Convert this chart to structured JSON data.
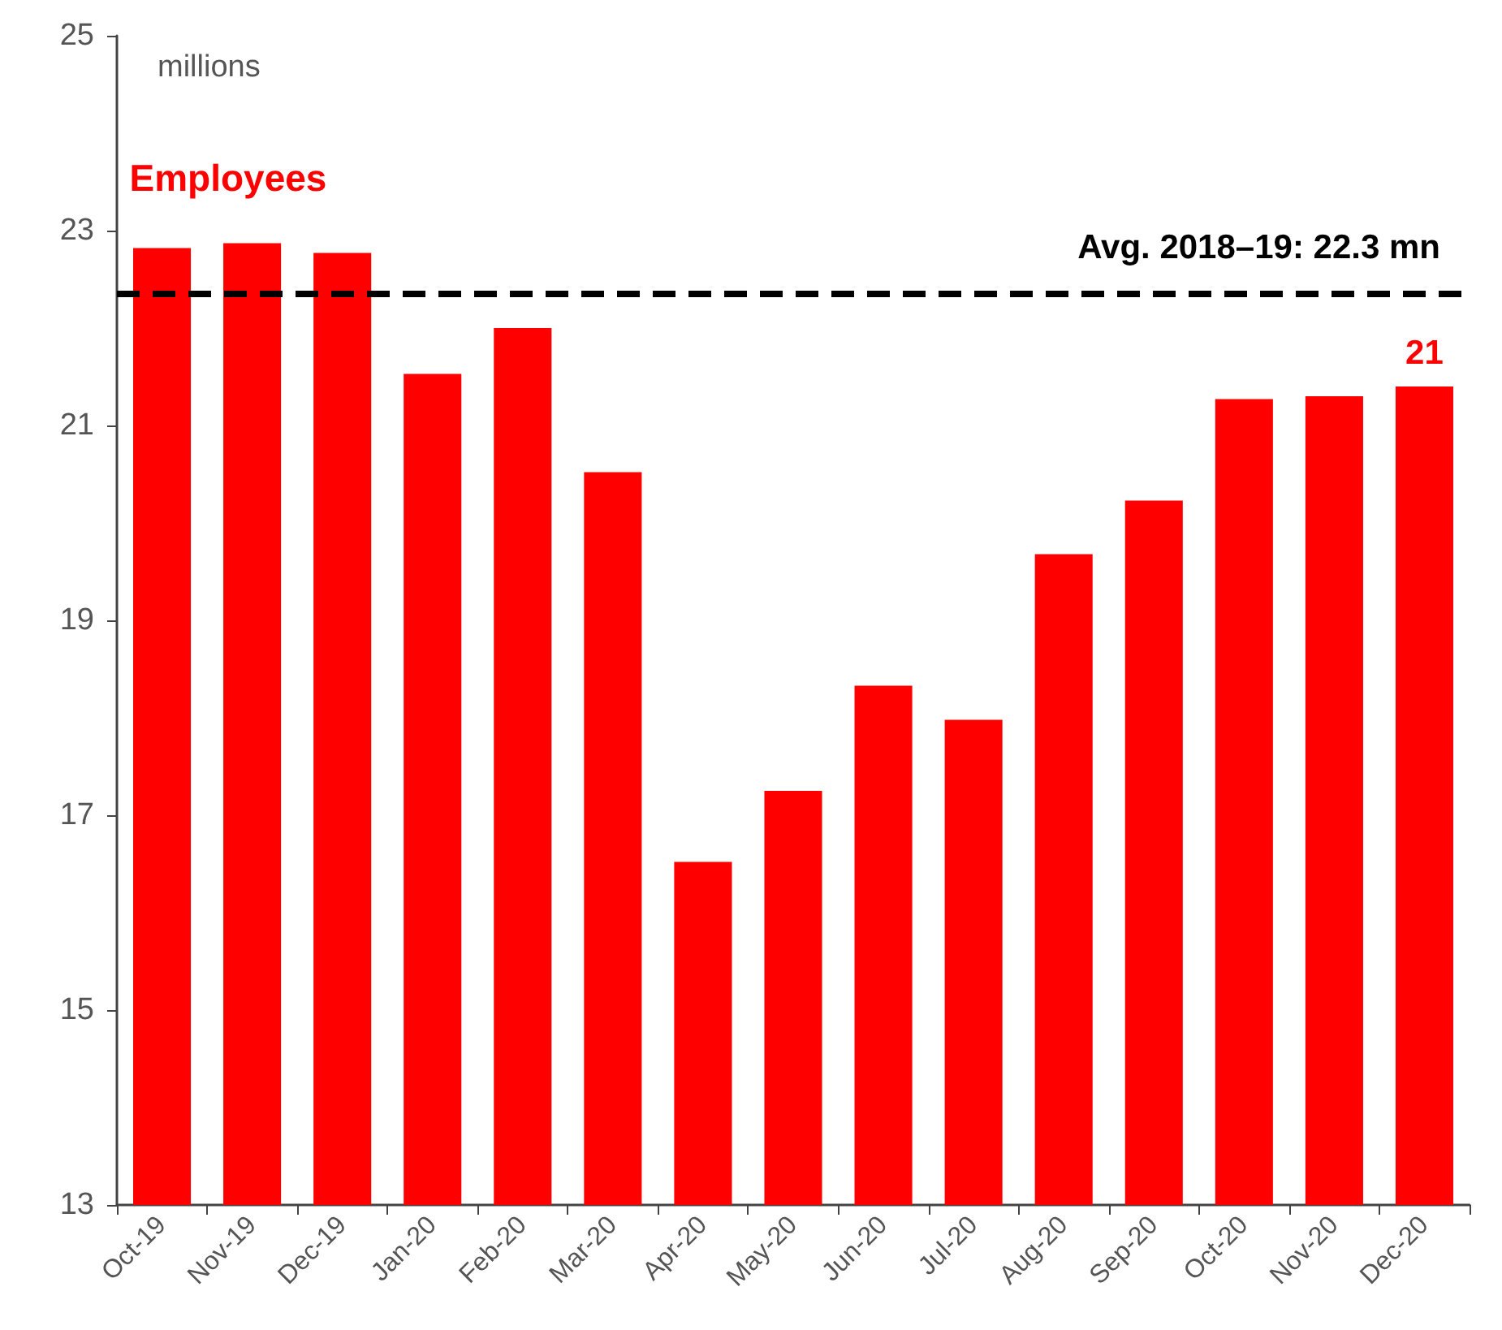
{
  "chart_data": {
    "type": "bar",
    "ylabel": "millions",
    "categories": [
      "Oct-19",
      "Nov-19",
      "Dec-19",
      "Jan-20",
      "Feb-20",
      "Mar-20",
      "Apr-20",
      "May-20",
      "Jun-20",
      "Jul-20",
      "Aug-20",
      "Sep-20",
      "Oct-20",
      "Nov-20",
      "Dec-20"
    ],
    "series": [
      {
        "name": "Employees",
        "color": "#ff0000",
        "values": [
          22.82,
          22.87,
          22.77,
          21.53,
          22.0,
          20.52,
          16.52,
          17.25,
          18.33,
          17.98,
          19.68,
          20.23,
          21.27,
          21.3,
          21.4
        ],
        "value_labels": [
          null,
          null,
          null,
          null,
          null,
          null,
          null,
          null,
          null,
          null,
          null,
          null,
          null,
          null,
          "21"
        ]
      }
    ],
    "ylim": [
      13,
      25
    ],
    "yticks": [
      13,
      15,
      17,
      19,
      21,
      23,
      25
    ],
    "ref_lines": [
      {
        "axis": "y",
        "value": 22.35,
        "label": "Avg. 2018–19: 22.3 mn",
        "color": "#000000",
        "line_style": "dashed"
      }
    ],
    "grid": false,
    "legend": false
  }
}
